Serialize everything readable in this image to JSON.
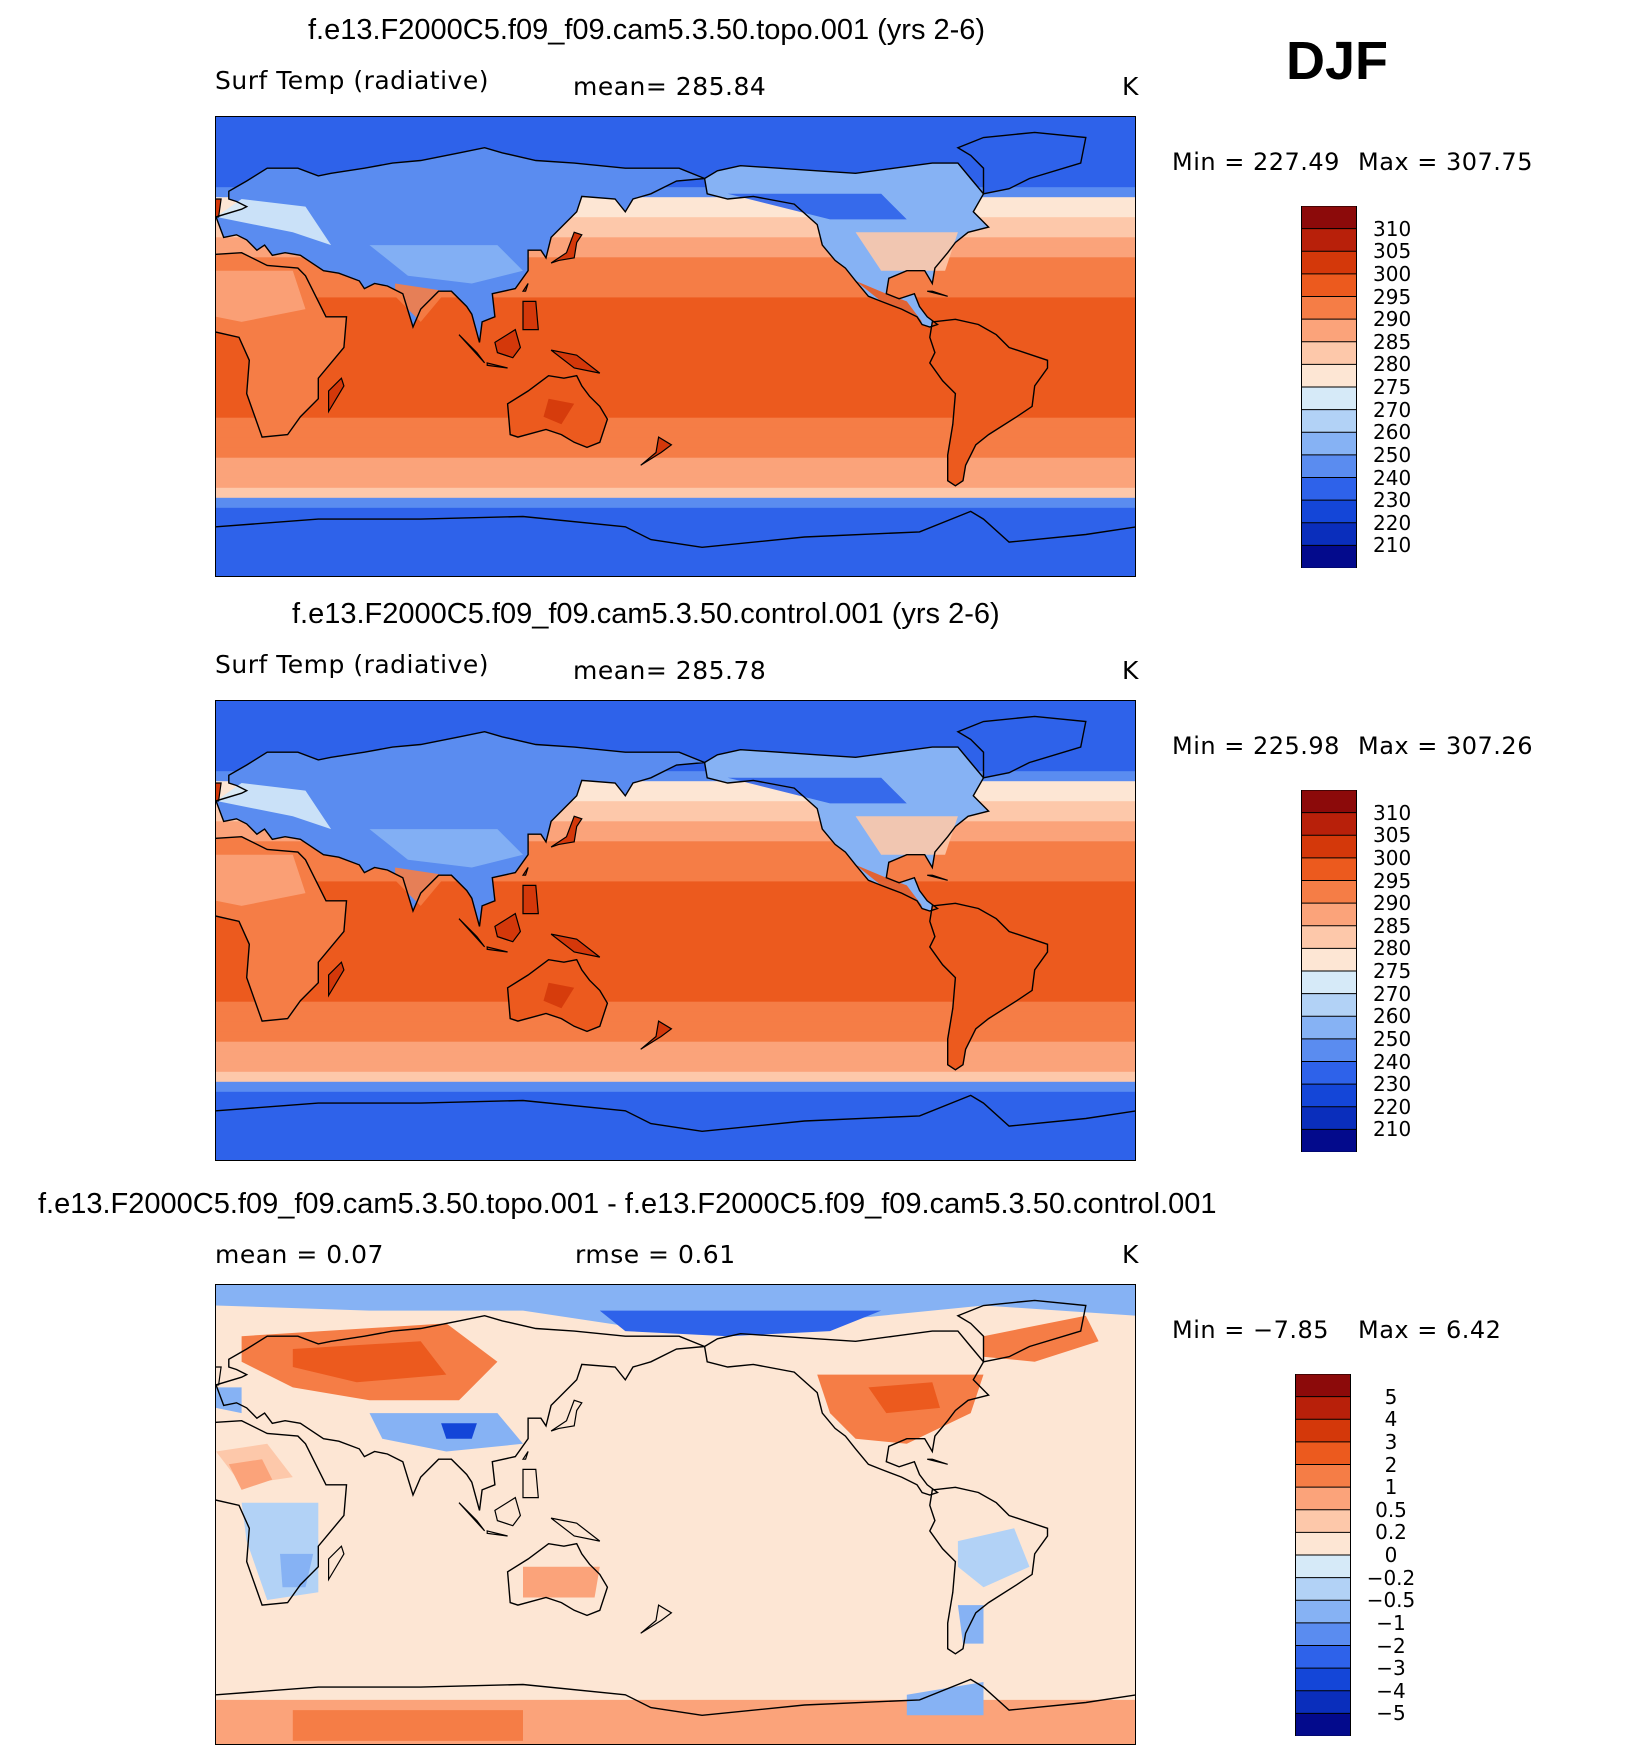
{
  "figure": {
    "season": "DJF",
    "units": "K"
  },
  "chart_data": [
    {
      "type": "heatmap",
      "title": "f.e13.F2000C5.f09_f09.cam5.3.50.topo.001 (yrs 2-6)",
      "variable": "Surf Temp (radiative)",
      "stat_text": "mean=  285.84",
      "mean": 285.84,
      "units": "K",
      "min_text": "Min  =  227.49",
      "max_text": "Max  =  307.75",
      "min": 227.49,
      "max": 307.75,
      "colorbar_labels": [
        "310",
        "305",
        "300",
        "295",
        "290",
        "285",
        "280",
        "275",
        "270",
        "260",
        "250",
        "240",
        "230",
        "220",
        "210"
      ],
      "colorbar_colors": [
        "#8c0a0a",
        "#b8200a",
        "#d4380a",
        "#ec5a1e",
        "#f57d46",
        "#fba37a",
        "#fdc8aa",
        "#fde6d4",
        "#d6eaf8",
        "#b2d2f6",
        "#86b2f4",
        "#5a8cf0",
        "#2e62ea",
        "#1446d8",
        "#0a2ebc",
        "#030a8c"
      ],
      "field_bands": [
        {
          "value": 245,
          "color": "#2e62ea"
        },
        {
          "value": 255,
          "color": "#5a8cf0"
        },
        {
          "value": 262,
          "color": "#86b2f4"
        },
        {
          "value": 268,
          "color": "#b2d2f6"
        },
        {
          "value": 273,
          "color": "#d6eaf8"
        },
        {
          "value": 278,
          "color": "#fde6d4"
        },
        {
          "value": 283,
          "color": "#fdc8aa"
        },
        {
          "value": 288,
          "color": "#fba37a"
        },
        {
          "value": 293,
          "color": "#f57d46"
        },
        {
          "value": 298,
          "color": "#ec5a1e"
        },
        {
          "value": 302,
          "color": "#d4380a"
        }
      ]
    },
    {
      "type": "heatmap",
      "title": "f.e13.F2000C5.f09_f09.cam5.3.50.control.001 (yrs 2-6)",
      "variable": "Surf Temp (radiative)",
      "stat_text": "mean=  285.78",
      "mean": 285.78,
      "units": "K",
      "min_text": "Min  =  225.98",
      "max_text": "Max  =  307.26",
      "min": 225.98,
      "max": 307.26,
      "colorbar_labels": [
        "310",
        "305",
        "300",
        "295",
        "290",
        "285",
        "280",
        "275",
        "270",
        "260",
        "250",
        "240",
        "230",
        "220",
        "210"
      ],
      "colorbar_colors": [
        "#8c0a0a",
        "#b8200a",
        "#d4380a",
        "#ec5a1e",
        "#f57d46",
        "#fba37a",
        "#fdc8aa",
        "#fde6d4",
        "#d6eaf8",
        "#b2d2f6",
        "#86b2f4",
        "#5a8cf0",
        "#2e62ea",
        "#1446d8",
        "#0a2ebc",
        "#030a8c"
      ],
      "field_bands": [
        {
          "value": 245,
          "color": "#2e62ea"
        },
        {
          "value": 255,
          "color": "#5a8cf0"
        },
        {
          "value": 262,
          "color": "#86b2f4"
        },
        {
          "value": 268,
          "color": "#b2d2f6"
        },
        {
          "value": 273,
          "color": "#d6eaf8"
        },
        {
          "value": 278,
          "color": "#fde6d4"
        },
        {
          "value": 283,
          "color": "#fdc8aa"
        },
        {
          "value": 288,
          "color": "#fba37a"
        },
        {
          "value": 293,
          "color": "#f57d46"
        },
        {
          "value": 298,
          "color": "#ec5a1e"
        },
        {
          "value": 302,
          "color": "#d4380a"
        }
      ]
    },
    {
      "type": "heatmap",
      "title": "f.e13.F2000C5.f09_f09.cam5.3.50.topo.001 - f.e13.F2000C5.f09_f09.cam5.3.50.control.001",
      "stat_left_text": "mean =     0.07",
      "stat_right_text": "rmse =     0.61",
      "mean": 0.07,
      "rmse": 0.61,
      "units": "K",
      "min_text": "Min  =    −7.85",
      "max_text": "Max  =     6.42",
      "min": -7.85,
      "max": 6.42,
      "colorbar_labels": [
        "5",
        "4",
        "3",
        "2",
        "1",
        "0.5",
        "0.2",
        "0",
        "−0.2",
        "−0.5",
        "−1",
        "−2",
        "−3",
        "−4",
        "−5"
      ],
      "colorbar_colors": [
        "#8c0a0a",
        "#b8200a",
        "#d4380a",
        "#ec5a1e",
        "#f57d46",
        "#fba37a",
        "#fdc8aa",
        "#fde6d4",
        "#d6eaf8",
        "#b2d2f6",
        "#86b2f4",
        "#5a8cf0",
        "#2e62ea",
        "#1446d8",
        "#0a2ebc",
        "#030a8c"
      ]
    }
  ]
}
